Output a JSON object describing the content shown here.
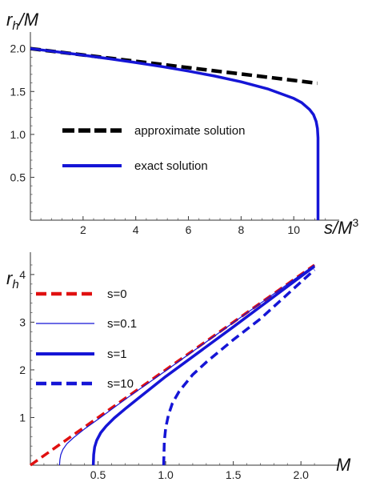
{
  "chart_data": [
    {
      "type": "line",
      "xlabel": "s/M³",
      "ylabel": "r_h/M",
      "xlim": [
        0,
        11.3
      ],
      "ylim": [
        0,
        2.1
      ],
      "xticks": [
        2,
        4,
        6,
        8,
        10
      ],
      "yticks": [
        0.5,
        1.0,
        1.5,
        2.0
      ],
      "ytick_labels": [
        "0.5",
        "1.0",
        "1.5",
        "2.0"
      ],
      "grid": false,
      "legend_position": "center-left",
      "series": [
        {
          "name": "approximate solution",
          "color": "#000000",
          "style": "dashed",
          "x": [
            0,
            1,
            2,
            3,
            4,
            5,
            6,
            7,
            8,
            9,
            10,
            10.9
          ],
          "y": [
            2.0,
            1.963,
            1.926,
            1.889,
            1.852,
            1.815,
            1.778,
            1.741,
            1.704,
            1.667,
            1.63,
            1.596
          ]
        },
        {
          "name": "exact solution",
          "color": "#1515d6",
          "style": "solid",
          "x": [
            0,
            1,
            2,
            3,
            4,
            5,
            6,
            7,
            8,
            9,
            10,
            10.3,
            10.6,
            10.75,
            10.85,
            10.9,
            10.92,
            10.92
          ],
          "y": [
            2.0,
            1.963,
            1.924,
            1.882,
            1.838,
            1.79,
            1.738,
            1.68,
            1.613,
            1.532,
            1.42,
            1.37,
            1.29,
            1.23,
            1.15,
            1.07,
            0.96,
            0.0
          ]
        }
      ]
    },
    {
      "type": "line",
      "xlabel": "M",
      "ylabel": "r_h",
      "xlim": [
        0,
        2.2
      ],
      "ylim": [
        0,
        4.3
      ],
      "xticks": [
        0.5,
        1.0,
        1.5,
        2.0
      ],
      "xtick_labels": [
        "0.5",
        "1.0",
        "1.5",
        "2.0"
      ],
      "yticks": [
        1,
        2,
        3,
        4
      ],
      "grid": false,
      "legend_position": "top-left",
      "series": [
        {
          "name": "s=0",
          "color": "#e01010",
          "style": "dashed",
          "x": [
            0,
            0.5,
            1.0,
            1.5,
            2.1
          ],
          "y": [
            0,
            1.0,
            2.0,
            3.0,
            4.2
          ]
        },
        {
          "name": "s=0.1",
          "color": "#1515d6",
          "style": "thin",
          "x": [
            0.215,
            0.218,
            0.225,
            0.24,
            0.27,
            0.32,
            0.4,
            0.5,
            0.7,
            1.0,
            1.5,
            2.1
          ],
          "y": [
            0,
            0.12,
            0.22,
            0.33,
            0.45,
            0.58,
            0.76,
            0.96,
            1.38,
            1.98,
            2.99,
            4.2
          ]
        },
        {
          "name": "s=1",
          "color": "#1515d6",
          "style": "solid",
          "x": [
            0.465,
            0.468,
            0.475,
            0.49,
            0.52,
            0.56,
            0.62,
            0.7,
            0.8,
            1.0,
            1.5,
            2.1
          ],
          "y": [
            0,
            0.22,
            0.38,
            0.52,
            0.68,
            0.82,
            0.99,
            1.18,
            1.41,
            1.86,
            2.9,
            4.17
          ]
        },
        {
          "name": "s=10",
          "color": "#1515d6",
          "style": "dashed",
          "x": [
            0.985,
            0.99,
            1.0,
            1.02,
            1.05,
            1.1,
            1.2,
            1.3,
            1.5,
            1.7,
            2.1
          ],
          "y": [
            0,
            0.5,
            0.78,
            1.05,
            1.3,
            1.55,
            1.9,
            2.16,
            2.63,
            3.07,
            4.1
          ]
        }
      ]
    }
  ]
}
